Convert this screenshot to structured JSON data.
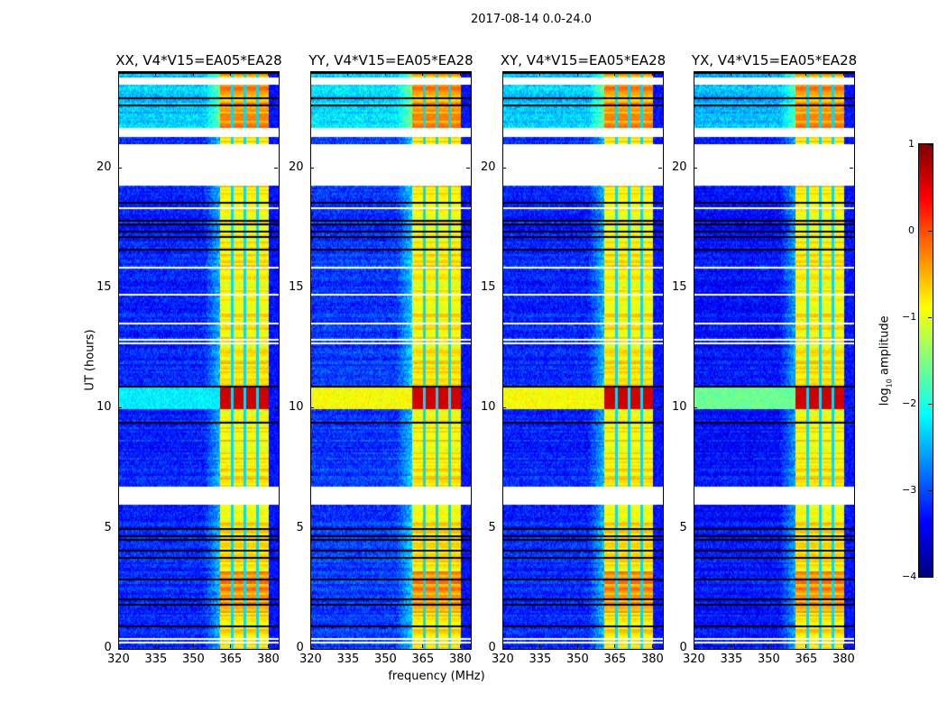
{
  "suptitle": "2017-08-14 0.0-24.0",
  "chart_data": {
    "type": "heatmap",
    "title": "2017-08-14 0.0-24.0",
    "xlabel": "frequency (MHz)",
    "ylabel": "UT (hours)",
    "xlim": [
      320,
      384
    ],
    "ylim": [
      0,
      24
    ],
    "xticks": [
      "320",
      "335",
      "350",
      "365",
      "380"
    ],
    "xtick_values": [
      320,
      335,
      350,
      365,
      380
    ],
    "yticks": [
      "0",
      "5",
      "10",
      "15",
      "20"
    ],
    "ytick_values": [
      0,
      5,
      10,
      15,
      20
    ],
    "panels": [
      {
        "title": "XX, V4*V15=EA05*EA28",
        "background_level": -3.2,
        "flare_background": -2.2
      },
      {
        "title": "YY, V4*V15=EA05*EA28",
        "background_level": -3.1,
        "flare_background": -0.9
      },
      {
        "title": "XY, V4*V15=EA05*EA28",
        "background_level": -3.2,
        "flare_background": -0.9
      },
      {
        "title": "YX, V4*V15=EA05*EA28",
        "background_level": -3.3,
        "flare_background": -1.6
      }
    ],
    "signal_band_mhz": [
      360.5,
      380
    ],
    "channel_edges_mhz": [
      365.5,
      370.5,
      375.5
    ],
    "signal_band_level": -0.8,
    "high_amplitude_interval_hours": [
      10,
      10.9
    ],
    "high_amplitude_level": 0.6,
    "flagged_intervals_hours": [
      [
        5.97,
        6.75
      ],
      [
        19.25,
        21.0
      ],
      [
        21.3,
        21.7
      ],
      [
        23.5,
        23.75
      ]
    ],
    "colorbar": {
      "label": "log10 amplitude",
      "label_base": "log",
      "label_sub": "10",
      "label_rest": " amplitude",
      "range": [
        -4,
        1
      ],
      "ticks": [
        "1",
        "0",
        "−1",
        "−2",
        "−3",
        "−4"
      ],
      "tick_values": [
        1,
        0,
        -1,
        -2,
        -3,
        -4
      ],
      "colormap": "jet"
    }
  }
}
